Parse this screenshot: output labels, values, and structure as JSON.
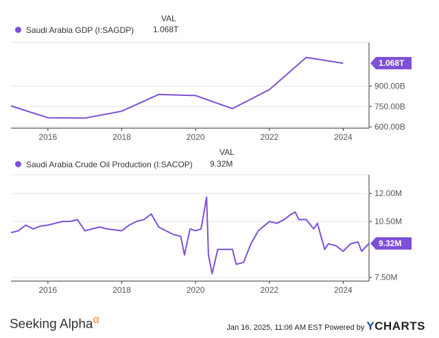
{
  "colors": {
    "series": "#7d4fd6",
    "axis": "#333333",
    "grid": "#e6e6e6"
  },
  "charts": [
    {
      "legend_label": "Saudi Arabia GDP (I:SAGDP)",
      "val_header": "VAL",
      "val_text": "1.068T",
      "badge_text": "1.068T",
      "x_ticks": [
        "2016",
        "2018",
        "2020",
        "2022",
        "2024"
      ],
      "y_ticks": [
        "900.00B",
        "750.00B",
        "600.00B"
      ]
    },
    {
      "legend_label": "Saudi Arabia Crude Oil Production (I:SACOP)",
      "val_header": "VAL",
      "val_text": "9.32M",
      "badge_text": "9.32M",
      "x_ticks": [
        "2016",
        "2018",
        "2020",
        "2022",
        "2024"
      ],
      "y_ticks": [
        "12.00M",
        "10.50M",
        "7.50M"
      ]
    }
  ],
  "chart_data": [
    {
      "type": "line",
      "series": [
        {
          "name": "Saudi Arabia GDP (I:SAGDP)",
          "x": [
            2015,
            2016,
            2017,
            2018,
            2019,
            2020,
            2021,
            2022,
            2023,
            2024
          ],
          "y": [
            754,
            667,
            664,
            715,
            838,
            830,
            734,
            874,
            1110,
            1068
          ]
        }
      ],
      "x_unit": "year",
      "y_unit": "billion USD",
      "xlim": [
        2015,
        2024.7
      ],
      "ylim": [
        590,
        1220
      ]
    },
    {
      "type": "line",
      "series": [
        {
          "name": "Saudi Arabia Crude Oil Production (I:SACOP)",
          "x": [
            2015.0,
            2015.2,
            2015.4,
            2015.6,
            2015.8,
            2016.0,
            2016.2,
            2016.4,
            2016.6,
            2016.8,
            2017.0,
            2017.2,
            2017.4,
            2017.6,
            2017.8,
            2018.0,
            2018.2,
            2018.4,
            2018.6,
            2018.8,
            2019.0,
            2019.2,
            2019.4,
            2019.6,
            2019.7,
            2019.85,
            2020.0,
            2020.15,
            2020.3,
            2020.35,
            2020.45,
            2020.6,
            2020.8,
            2021.0,
            2021.1,
            2021.3,
            2021.5,
            2021.7,
            2022.0,
            2022.2,
            2022.4,
            2022.6,
            2022.7,
            2022.8,
            2023.0,
            2023.2,
            2023.3,
            2023.5,
            2023.6,
            2023.8,
            2024.0,
            2024.2,
            2024.4,
            2024.5,
            2024.7
          ],
          "y": [
            9.9,
            10.0,
            10.3,
            10.1,
            10.25,
            10.3,
            10.4,
            10.5,
            10.5,
            10.6,
            10.0,
            10.1,
            10.2,
            10.1,
            10.05,
            10.0,
            10.3,
            10.5,
            10.6,
            10.9,
            10.2,
            10.0,
            9.8,
            9.7,
            8.7,
            10.1,
            10.0,
            10.1,
            11.8,
            8.7,
            7.7,
            9.0,
            9.0,
            9.0,
            8.2,
            8.3,
            9.3,
            10.0,
            10.5,
            10.4,
            10.6,
            10.9,
            11.0,
            10.6,
            10.6,
            10.1,
            10.4,
            9.0,
            9.3,
            9.2,
            8.9,
            9.3,
            9.4,
            8.9,
            9.32
          ]
        }
      ],
      "x_unit": "year",
      "y_unit": "million barrels per day",
      "xlim": [
        2015,
        2024.7
      ],
      "ylim": [
        7.3,
        13.0
      ]
    }
  ]
}
